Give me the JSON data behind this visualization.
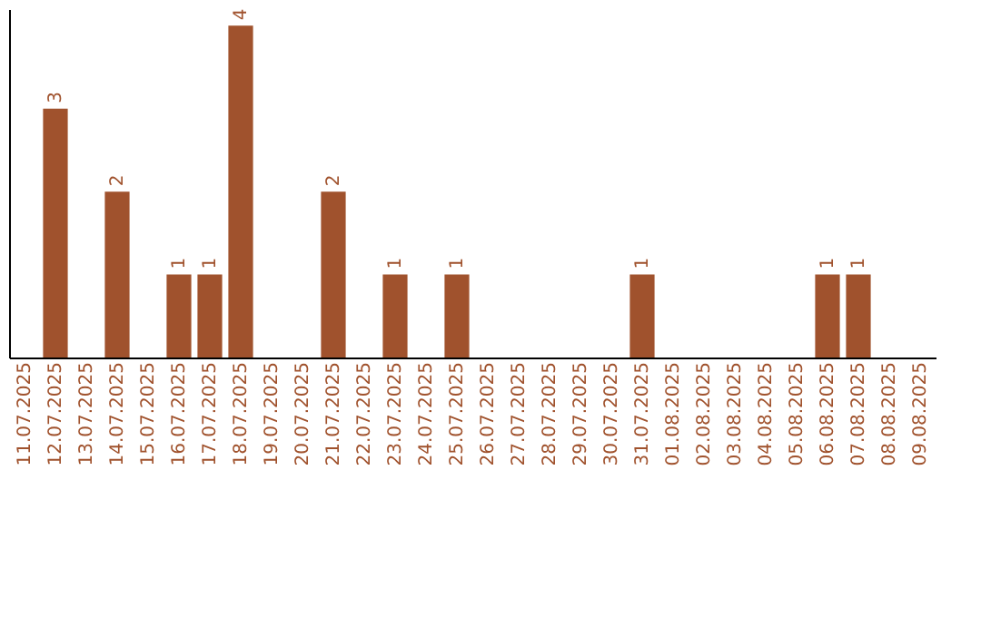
{
  "chart_data": {
    "type": "bar",
    "categories": [
      "11.07.2025",
      "12.07.2025",
      "13.07.2025",
      "14.07.2025",
      "15.07.2025",
      "16.07.2025",
      "17.07.2025",
      "18.07.2025",
      "19.07.2025",
      "20.07.2025",
      "21.07.2025",
      "22.07.2025",
      "23.07.2025",
      "24.07.2025",
      "25.07.2025",
      "26.07.2025",
      "27.07.2025",
      "28.07.2025",
      "29.07.2025",
      "30.07.2025",
      "31.07.2025",
      "01.08.2025",
      "02.08.2025",
      "03.08.2025",
      "04.08.2025",
      "05.08.2025",
      "06.08.2025",
      "07.08.2025",
      "08.08.2025",
      "09.08.2025"
    ],
    "values": [
      0,
      3,
      0,
      2,
      0,
      1,
      1,
      4,
      0,
      0,
      2,
      0,
      1,
      0,
      1,
      0,
      0,
      0,
      0,
      0,
      1,
      0,
      0,
      0,
      0,
      0,
      1,
      1,
      0,
      0
    ],
    "value_labels": [
      null,
      "3",
      null,
      "2",
      null,
      "1",
      "1",
      "4",
      null,
      null,
      "2",
      null,
      "1",
      null,
      "1",
      null,
      null,
      null,
      null,
      null,
      "1",
      null,
      null,
      null,
      null,
      null,
      "1",
      "1",
      null,
      null
    ],
    "color": "#a0522d",
    "ylim": [
      0,
      4.2
    ],
    "tick_labels": "x",
    "grid": false
  }
}
